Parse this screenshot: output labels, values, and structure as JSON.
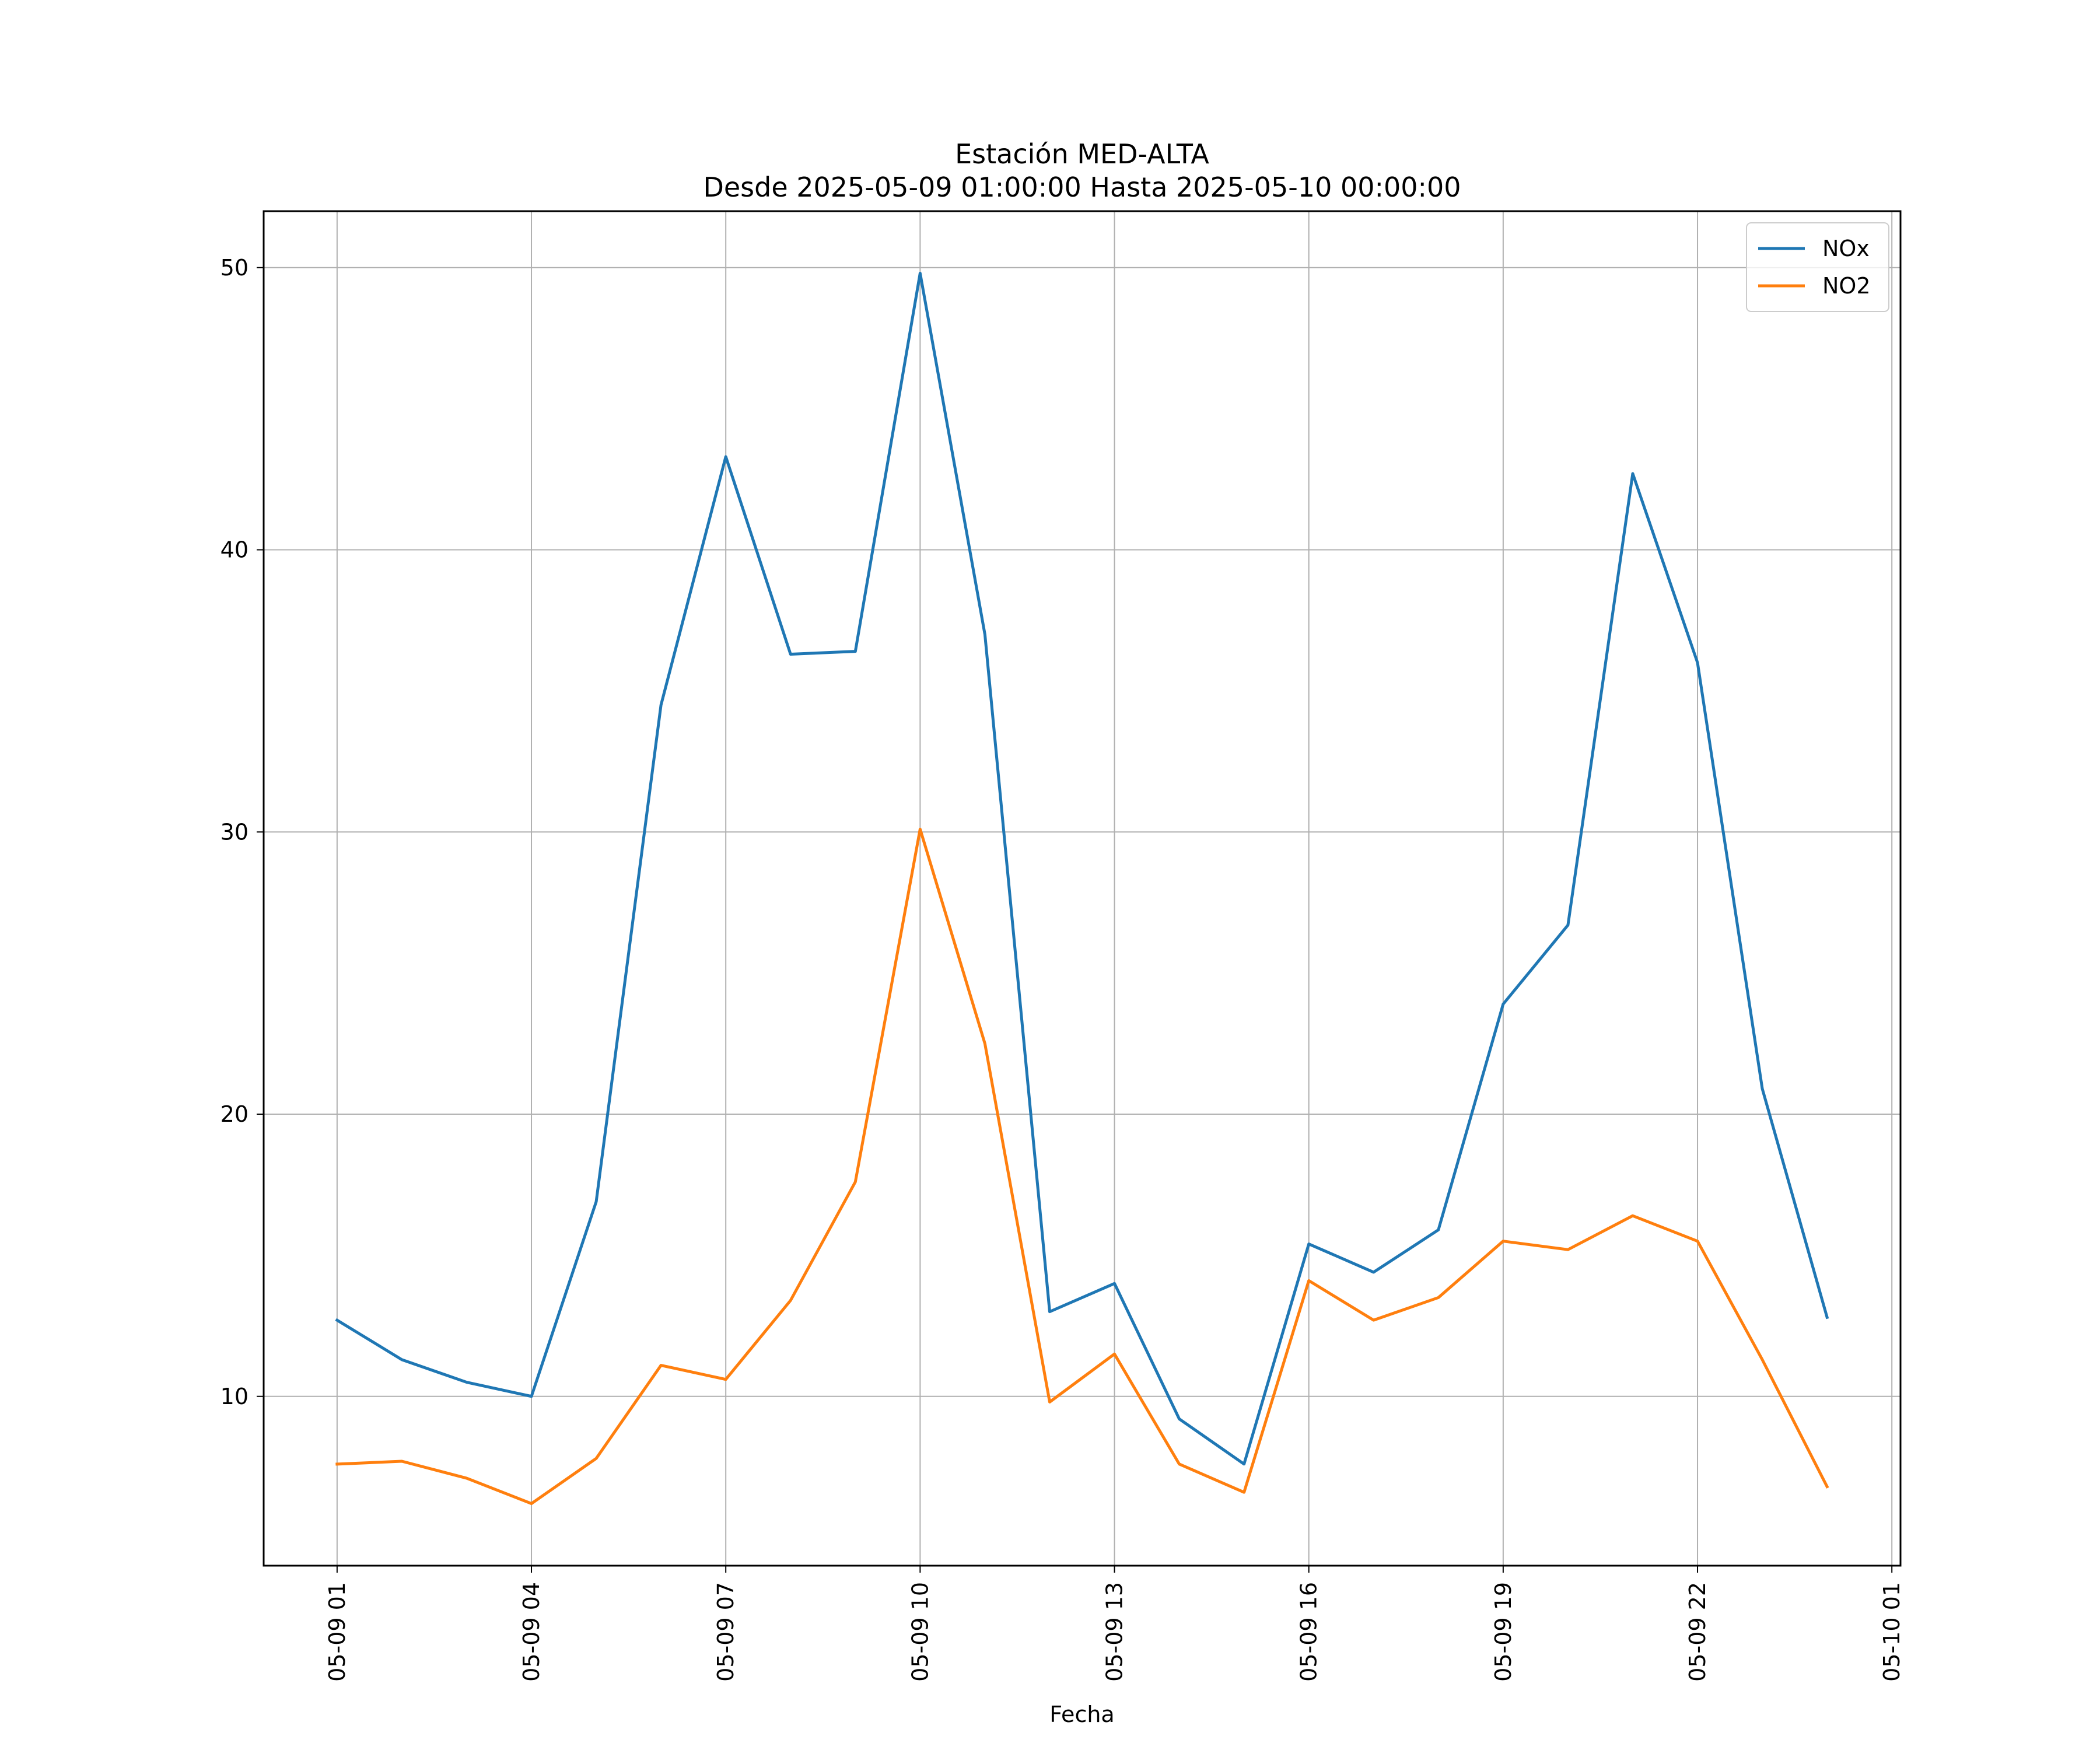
{
  "chart_data": {
    "type": "line",
    "title": "Estación MED-ALTA",
    "subtitle": "Desde 2025-05-09 01:00:00 Hasta 2025-05-10 00:00:00",
    "xlabel": "Fecha",
    "ylabel": "",
    "x": [
      "2025-05-09 01:00",
      "2025-05-09 02:00",
      "2025-05-09 03:00",
      "2025-05-09 04:00",
      "2025-05-09 05:00",
      "2025-05-09 06:00",
      "2025-05-09 07:00",
      "2025-05-09 08:00",
      "2025-05-09 09:00",
      "2025-05-09 10:00",
      "2025-05-09 11:00",
      "2025-05-09 12:00",
      "2025-05-09 13:00",
      "2025-05-09 14:00",
      "2025-05-09 15:00",
      "2025-05-09 16:00",
      "2025-05-09 17:00",
      "2025-05-09 18:00",
      "2025-05-09 19:00",
      "2025-05-09 20:00",
      "2025-05-09 21:00",
      "2025-05-09 22:00",
      "2025-05-09 23:00",
      "2025-05-10 00:00"
    ],
    "x_ticks": [
      "05-09 01",
      "05-09 04",
      "05-09 07",
      "05-09 10",
      "05-09 13",
      "05-09 16",
      "05-09 19",
      "05-09 22",
      "05-10 01"
    ],
    "x_range": [
      "2025-05-08 23:52",
      "2025-05-10 01:08"
    ],
    "y_ticks": [
      10,
      20,
      30,
      40,
      50
    ],
    "ylim": [
      4.0,
      52.0
    ],
    "grid": true,
    "legend_position": "top-right",
    "series": [
      {
        "name": "NOx",
        "color": "#1f77b4",
        "values": [
          12.7,
          11.3,
          10.5,
          10.0,
          16.9,
          34.5,
          43.3,
          36.3,
          36.4,
          49.8,
          37.0,
          13.0,
          14.0,
          9.2,
          7.6,
          15.4,
          14.4,
          15.9,
          23.9,
          26.7,
          42.7,
          36.0,
          20.9,
          12.8
        ]
      },
      {
        "name": "NO2",
        "color": "#ff7f0e",
        "values": [
          7.6,
          7.7,
          7.1,
          6.2,
          7.8,
          11.1,
          10.6,
          13.4,
          17.6,
          30.1,
          22.5,
          9.8,
          11.5,
          7.6,
          6.6,
          14.1,
          12.7,
          13.5,
          15.5,
          15.2,
          16.4,
          15.5,
          11.3,
          6.8
        ]
      }
    ]
  }
}
